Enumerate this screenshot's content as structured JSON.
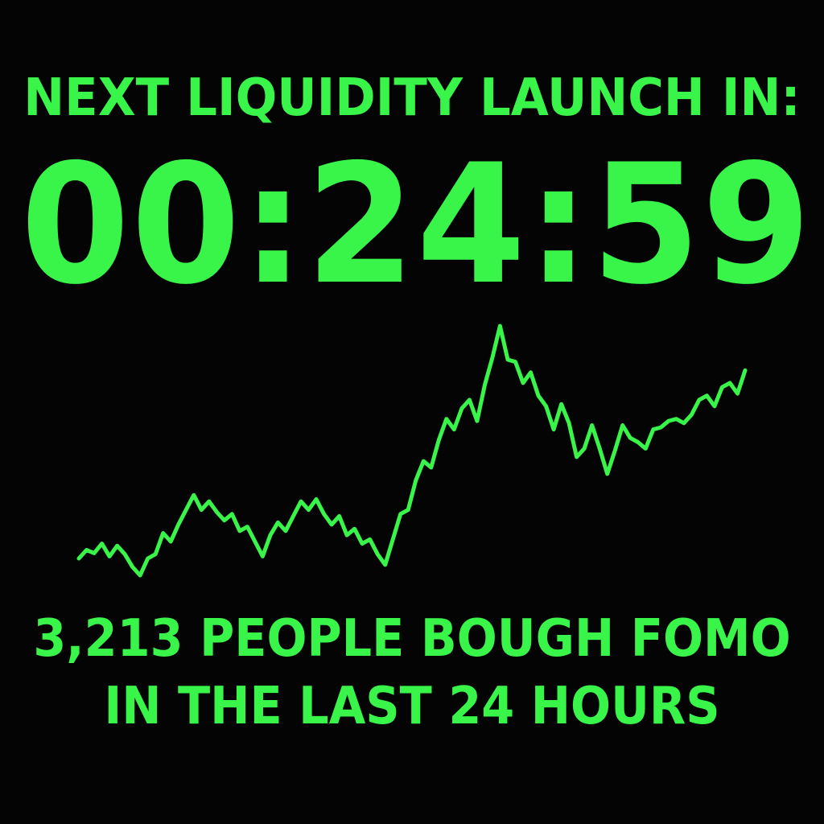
{
  "theme": {
    "background": "#000000",
    "accent": "#39f54a"
  },
  "headline": "NEXT LIQUIDITY LAUNCH IN:",
  "countdown": "00:24:59",
  "footer": {
    "line1": "3,213 PEOPLE BOUGH FOMO",
    "line2": "IN THE LAST 24 HOURS"
  },
  "sparkline": {
    "values": [
      20,
      28,
      25,
      34,
      22,
      32,
      24,
      12,
      4,
      20,
      24,
      44,
      36,
      52,
      66,
      80,
      66,
      74,
      64,
      56,
      62,
      46,
      50,
      36,
      22,
      42,
      54,
      46,
      60,
      74,
      66,
      76,
      62,
      52,
      60,
      42,
      48,
      34,
      38,
      24,
      14,
      38,
      62,
      66,
      94,
      112,
      106,
      132,
      152,
      142,
      162,
      170,
      150,
      184,
      210,
      240,
      208,
      206,
      186,
      196,
      174,
      164,
      142,
      166,
      148,
      116,
      124,
      146,
      124,
      100,
      122,
      146,
      134,
      130,
      124,
      142,
      144,
      150,
      152,
      148,
      156,
      170,
      174,
      164,
      182,
      186,
      176,
      198
    ]
  }
}
